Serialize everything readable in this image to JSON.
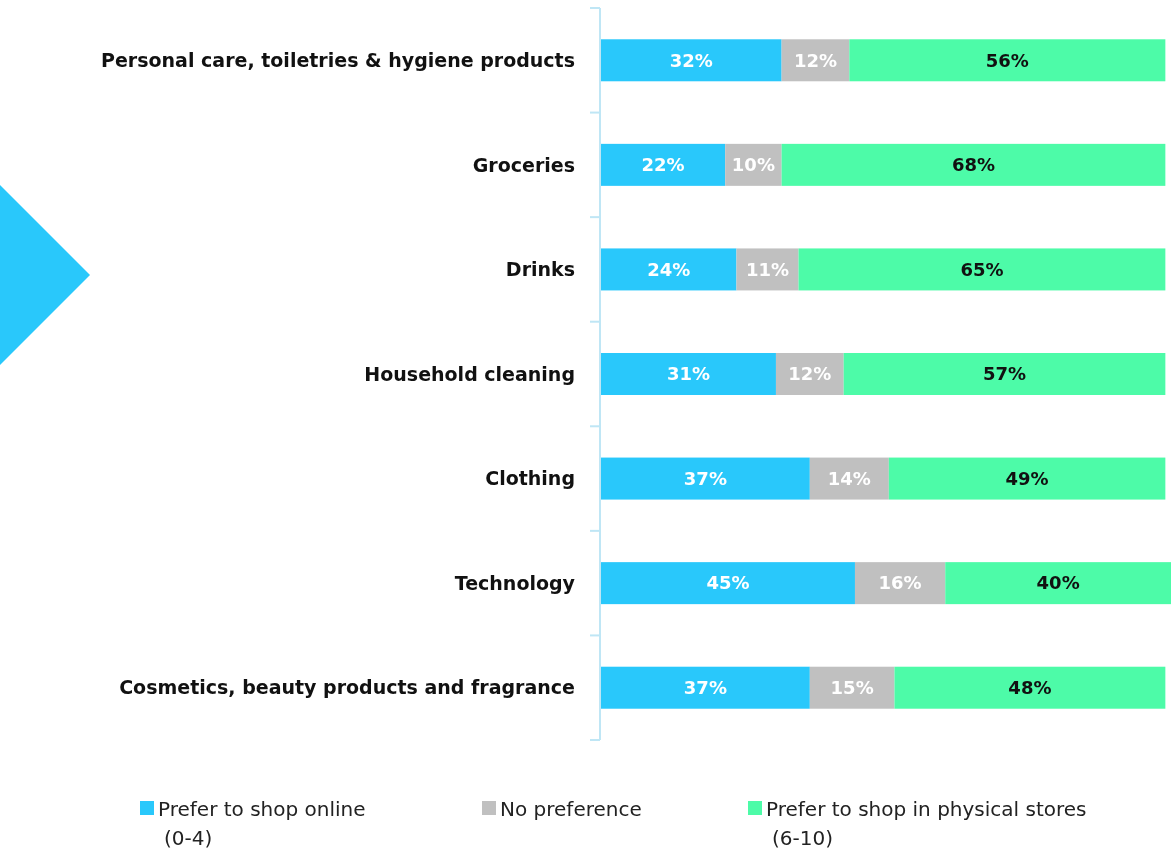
{
  "chart_data": {
    "type": "bar",
    "orientation": "horizontal",
    "stacked": true,
    "legend": "bottom",
    "categories": [
      "Personal care, toiletries & hygiene products",
      "Groceries",
      "Drinks",
      "Household cleaning",
      "Clothing",
      "Technology",
      "Cosmetics, beauty products and fragrance"
    ],
    "series": [
      {
        "name": "Prefer to shop online\n(0-4)",
        "color": "#29c8fb",
        "values": [
          32,
          22,
          24,
          31,
          37,
          45,
          37
        ],
        "value_labels": [
          "32%",
          "22%",
          "24%",
          "31%",
          "37%",
          "45%",
          "37%"
        ]
      },
      {
        "name": "No preference",
        "color": "#c0c0c0",
        "values": [
          12,
          10,
          11,
          12,
          14,
          16,
          15
        ],
        "value_labels": [
          "12%",
          "10%",
          "11%",
          "12%",
          "14%",
          "16%",
          "15%"
        ]
      },
      {
        "name": "Prefer to shop in physical stores\n(6-10)",
        "color": "#4dfba8",
        "values": [
          56,
          68,
          65,
          57,
          49,
          40,
          48
        ],
        "value_labels": [
          "56%",
          "68%",
          "65%",
          "57%",
          "49%",
          "40%",
          "48%"
        ]
      }
    ]
  }
}
